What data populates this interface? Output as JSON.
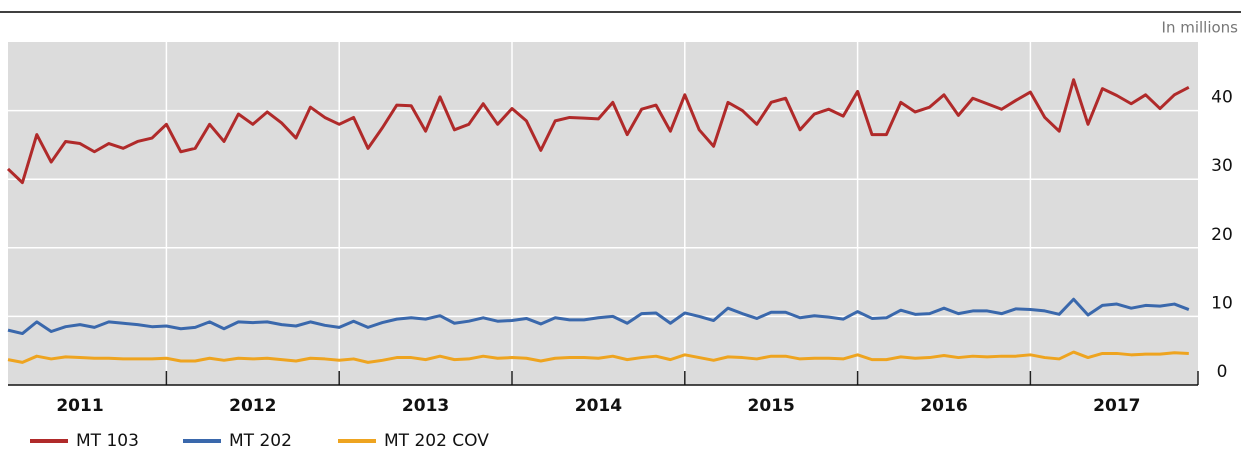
{
  "chart_data": {
    "type": "line",
    "y_unit_label": "In millions",
    "categories": [
      null,
      null,
      null,
      null,
      null,
      "2011",
      null,
      null,
      null,
      null,
      null,
      null,
      null,
      null,
      null,
      null,
      null,
      "2012",
      null,
      null,
      null,
      null,
      null,
      null,
      null,
      null,
      null,
      null,
      null,
      "2013",
      null,
      null,
      null,
      null,
      null,
      null,
      null,
      null,
      null,
      null,
      null,
      "2014",
      null,
      null,
      null,
      null,
      null,
      null,
      null,
      null,
      null,
      null,
      null,
      "2015",
      null,
      null,
      null,
      null,
      null,
      null,
      null,
      null,
      null,
      null,
      null,
      "2016",
      null,
      null,
      null,
      null,
      null,
      null,
      null,
      null,
      null,
      null,
      null,
      "2017",
      null,
      null,
      null,
      null,
      null
    ],
    "series": [
      {
        "name": "MT 103",
        "color": "#b02a2a",
        "values": [
          31.5,
          29.5,
          36.5,
          32.5,
          35.5,
          35.2,
          34,
          35.2,
          34.5,
          35.5,
          36,
          38,
          34,
          34.5,
          38,
          35.5,
          39.5,
          38,
          39.8,
          38.2,
          36,
          40.5,
          39,
          38,
          39,
          34.5,
          37.5,
          40.8,
          40.7,
          37,
          42,
          37.2,
          38,
          41,
          38,
          40.3,
          38.5,
          34.2,
          38.5,
          39,
          38.9,
          38.8,
          41.2,
          36.5,
          40.2,
          40.8,
          37,
          42.3,
          37.2,
          34.8,
          41.2,
          40,
          38,
          41.2,
          41.8,
          37.2,
          39.5,
          40.2,
          39.2,
          42.8,
          36.5,
          36.5,
          41.2,
          39.8,
          40.5,
          42.3,
          39.3,
          41.8,
          41,
          40.2,
          41.5,
          42.7,
          39,
          37,
          44.5,
          38,
          43.2,
          42.2,
          41,
          42.3,
          40.3,
          42.3,
          43.4
        ]
      },
      {
        "name": "MT 202",
        "color": "#3a68ac",
        "values": [
          8,
          7.5,
          9.2,
          7.8,
          8.5,
          8.8,
          8.4,
          9.2,
          9,
          8.8,
          8.5,
          8.6,
          8.2,
          8.4,
          9.2,
          8.2,
          9.2,
          9.1,
          9.2,
          8.8,
          8.6,
          9.2,
          8.7,
          8.4,
          9.3,
          8.4,
          9.1,
          9.6,
          9.8,
          9.6,
          10.1,
          9,
          9.3,
          9.8,
          9.3,
          9.4,
          9.7,
          8.9,
          9.8,
          9.5,
          9.5,
          9.8,
          10,
          9,
          10.4,
          10.5,
          9,
          10.5,
          10,
          9.4,
          11.2,
          10.4,
          9.7,
          10.6,
          10.6,
          9.8,
          10.1,
          9.9,
          9.6,
          10.7,
          9.7,
          9.8,
          10.9,
          10.3,
          10.4,
          11.2,
          10.4,
          10.8,
          10.8,
          10.4,
          11.1,
          11,
          10.8,
          10.3,
          12.5,
          10.2,
          11.6,
          11.8,
          11.2,
          11.6,
          11.5,
          11.8,
          11
        ]
      },
      {
        "name": "MT 202 COV",
        "color": "#eea420",
        "values": [
          3.7,
          3.3,
          4.2,
          3.8,
          4.1,
          4,
          3.9,
          3.9,
          3.8,
          3.8,
          3.8,
          3.9,
          3.5,
          3.5,
          3.9,
          3.6,
          3.9,
          3.8,
          3.9,
          3.7,
          3.5,
          3.9,
          3.8,
          3.6,
          3.8,
          3.3,
          3.6,
          4,
          4,
          3.7,
          4.2,
          3.7,
          3.8,
          4.2,
          3.9,
          4,
          3.9,
          3.5,
          3.9,
          4,
          4,
          3.9,
          4.2,
          3.7,
          4,
          4.2,
          3.7,
          4.4,
          4,
          3.6,
          4.1,
          4,
          3.8,
          4.2,
          4.2,
          3.8,
          3.9,
          3.9,
          3.8,
          4.4,
          3.7,
          3.7,
          4.1,
          3.9,
          4,
          4.3,
          4,
          4.2,
          4.1,
          4.2,
          4.2,
          4.4,
          4,
          3.8,
          4.8,
          4,
          4.6,
          4.6,
          4.4,
          4.5,
          4.5,
          4.7,
          4.6
        ]
      }
    ],
    "ylim": [
      0,
      50
    ],
    "yticks": [
      0,
      10,
      20,
      30,
      40
    ],
    "grid": true
  }
}
